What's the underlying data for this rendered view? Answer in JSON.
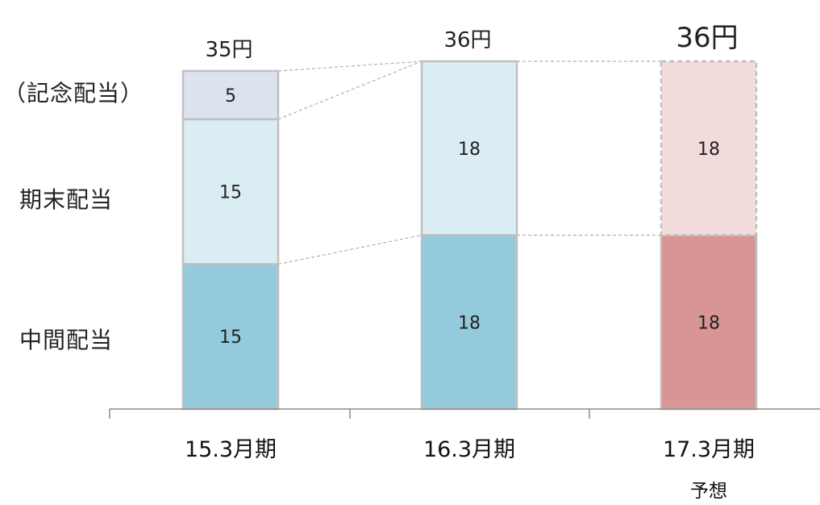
{
  "chart_data": {
    "type": "bar",
    "stacked": true,
    "categories": [
      "15.3月期",
      "16.3月期",
      "17.3月期"
    ],
    "category_sublabels": [
      "",
      "",
      "予想"
    ],
    "totals": [
      "35円",
      "36円",
      "36円"
    ],
    "series": [
      {
        "name": "中間配当",
        "values": [
          15,
          18,
          18
        ],
        "labels": [
          "15",
          "18",
          "18"
        ],
        "colors": [
          "#93cbdc",
          "#93cbdc",
          "#d99593"
        ]
      },
      {
        "name": "期末配当",
        "values": [
          15,
          18,
          18
        ],
        "labels": [
          "15",
          "18",
          "18"
        ],
        "colors": [
          "#daedf3",
          "#daedf3",
          "#f2dcdb"
        ]
      },
      {
        "name": "（記念配当）",
        "values": [
          5,
          0,
          0
        ],
        "labels": [
          "5",
          "",
          ""
        ],
        "colors": [
          "#dce3ef",
          "#dce3ef",
          "#dce3ef"
        ]
      }
    ],
    "forecast_index": 2,
    "ylim": [
      0,
      36
    ],
    "grid": false,
    "legend": "left"
  }
}
